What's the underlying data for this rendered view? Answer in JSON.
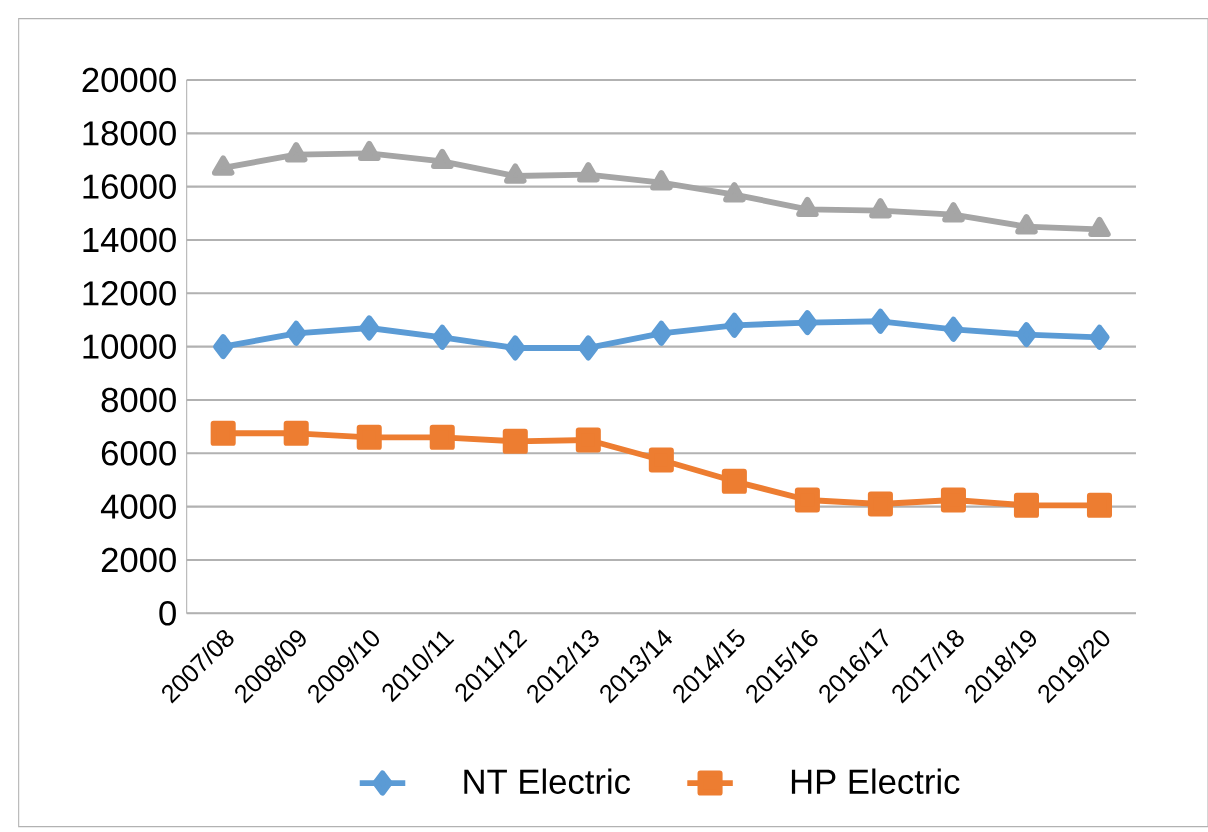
{
  "chart_data": {
    "type": "line",
    "categories": [
      "2007/08",
      "2008/09",
      "2009/10",
      "2010/11",
      "2011/12",
      "2012/13",
      "2013/14",
      "2014/15",
      "2015/16",
      "2016/17",
      "2017/18",
      "2018/19",
      "2019/20"
    ],
    "series": [
      {
        "name": "NT Electric",
        "color": "#5b9bd5",
        "marker": "diamond",
        "values": [
          10000,
          10500,
          10700,
          10350,
          9950,
          9950,
          10500,
          10800,
          10900,
          10950,
          10650,
          10450,
          10350
        ]
      },
      {
        "name": "HP Electric",
        "color": "#ed7d31",
        "marker": "square",
        "values": [
          6750,
          6750,
          6600,
          6600,
          6450,
          6500,
          5750,
          4950,
          4250,
          4100,
          4250,
          4050,
          4050
        ]
      },
      {
        "color": "#a5a5a5",
        "marker": "triangle",
        "values": [
          16700,
          17200,
          17250,
          16950,
          16400,
          16450,
          16150,
          15700,
          15150,
          15100,
          14950,
          14500,
          14400
        ]
      }
    ],
    "ylim": [
      0,
      20000
    ],
    "yticks": [
      0,
      2000,
      4000,
      6000,
      8000,
      10000,
      12000,
      14000,
      16000,
      18000,
      20000
    ],
    "grid": "y",
    "legend": "bottom",
    "line_style": "solid"
  }
}
